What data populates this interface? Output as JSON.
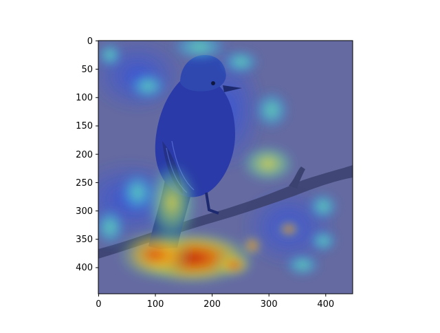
{
  "figure": {
    "kind": "attention-heatmap-overlay",
    "image_subject": "songbird perched on a branch",
    "colormap": "jet",
    "background_color": "#6e7294"
  },
  "axes": {
    "x_ticks": [
      "0",
      "100",
      "200",
      "300",
      "400"
    ],
    "y_ticks": [
      "0",
      "50",
      "100",
      "150",
      "200",
      "250",
      "300",
      "350",
      "400"
    ],
    "xlim": [
      0,
      448
    ],
    "ylim": [
      448,
      0
    ]
  },
  "heatmap": {
    "blobs": [
      {
        "x": 175,
        "y": 390,
        "r": 55,
        "level": 1.0
      },
      {
        "x": 120,
        "y": 385,
        "r": 45,
        "level": 0.9
      },
      {
        "x": 235,
        "y": 395,
        "r": 20,
        "level": 0.85
      },
      {
        "x": 270,
        "y": 365,
        "r": 14,
        "level": 0.75
      },
      {
        "x": 335,
        "y": 335,
        "r": 14,
        "level": 0.8
      },
      {
        "x": 140,
        "y": 290,
        "r": 45,
        "level": 0.6
      },
      {
        "x": 300,
        "y": 240,
        "r": 30,
        "level": 0.6
      },
      {
        "x": 180,
        "y": 15,
        "r": 35,
        "level": 0.5
      },
      {
        "x": 80,
        "y": 75,
        "r": 25,
        "level": 0.45
      },
      {
        "x": 320,
        "y": 130,
        "r": 25,
        "level": 0.45
      },
      {
        "x": 420,
        "y": 320,
        "r": 20,
        "level": 0.45
      },
      {
        "x": 40,
        "y": 330,
        "r": 30,
        "level": 0.35
      },
      {
        "x": 60,
        "y": 260,
        "r": 25,
        "level": 0.4
      },
      {
        "x": 395,
        "y": 400,
        "r": 20,
        "level": 0.4
      }
    ]
  }
}
